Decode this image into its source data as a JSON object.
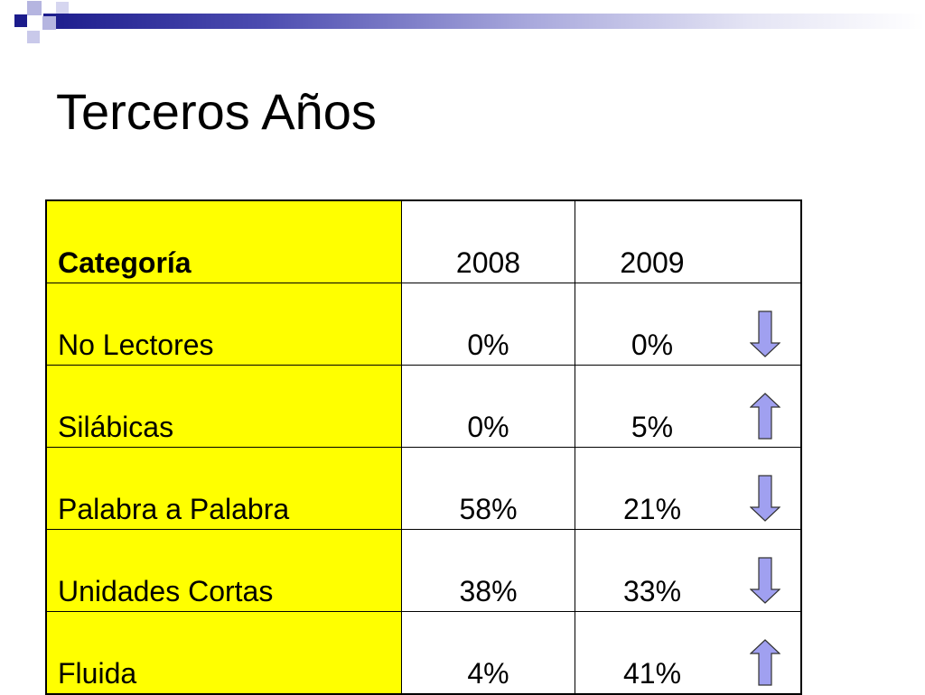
{
  "slide": {
    "title": "Terceros Años"
  },
  "table": {
    "headers": [
      "Categoría",
      "2008",
      "2009"
    ],
    "rows": [
      {
        "category": "No Lectores",
        "y2008": "0%",
        "y2009": "0%",
        "trend": "down"
      },
      {
        "category": "Silábicas",
        "y2008": "0%",
        "y2009": "5%",
        "trend": "up"
      },
      {
        "category": "Palabra a Palabra",
        "y2008": "58%",
        "y2009": "21%",
        "trend": "down"
      },
      {
        "category": "Unidades Cortas",
        "y2008": "38%",
        "y2009": "33%",
        "trend": "down"
      },
      {
        "category": "Fluida",
        "y2008": "4%",
        "y2009": "41%",
        "trend": "up"
      }
    ]
  },
  "colors": {
    "category_fill": "#ffff00",
    "arrow_fill": "#a0a0f0",
    "arrow_stroke": "#333333",
    "accent": "#1c1c8c"
  },
  "icons": {
    "down": "down-arrow-icon",
    "up": "up-arrow-icon"
  }
}
